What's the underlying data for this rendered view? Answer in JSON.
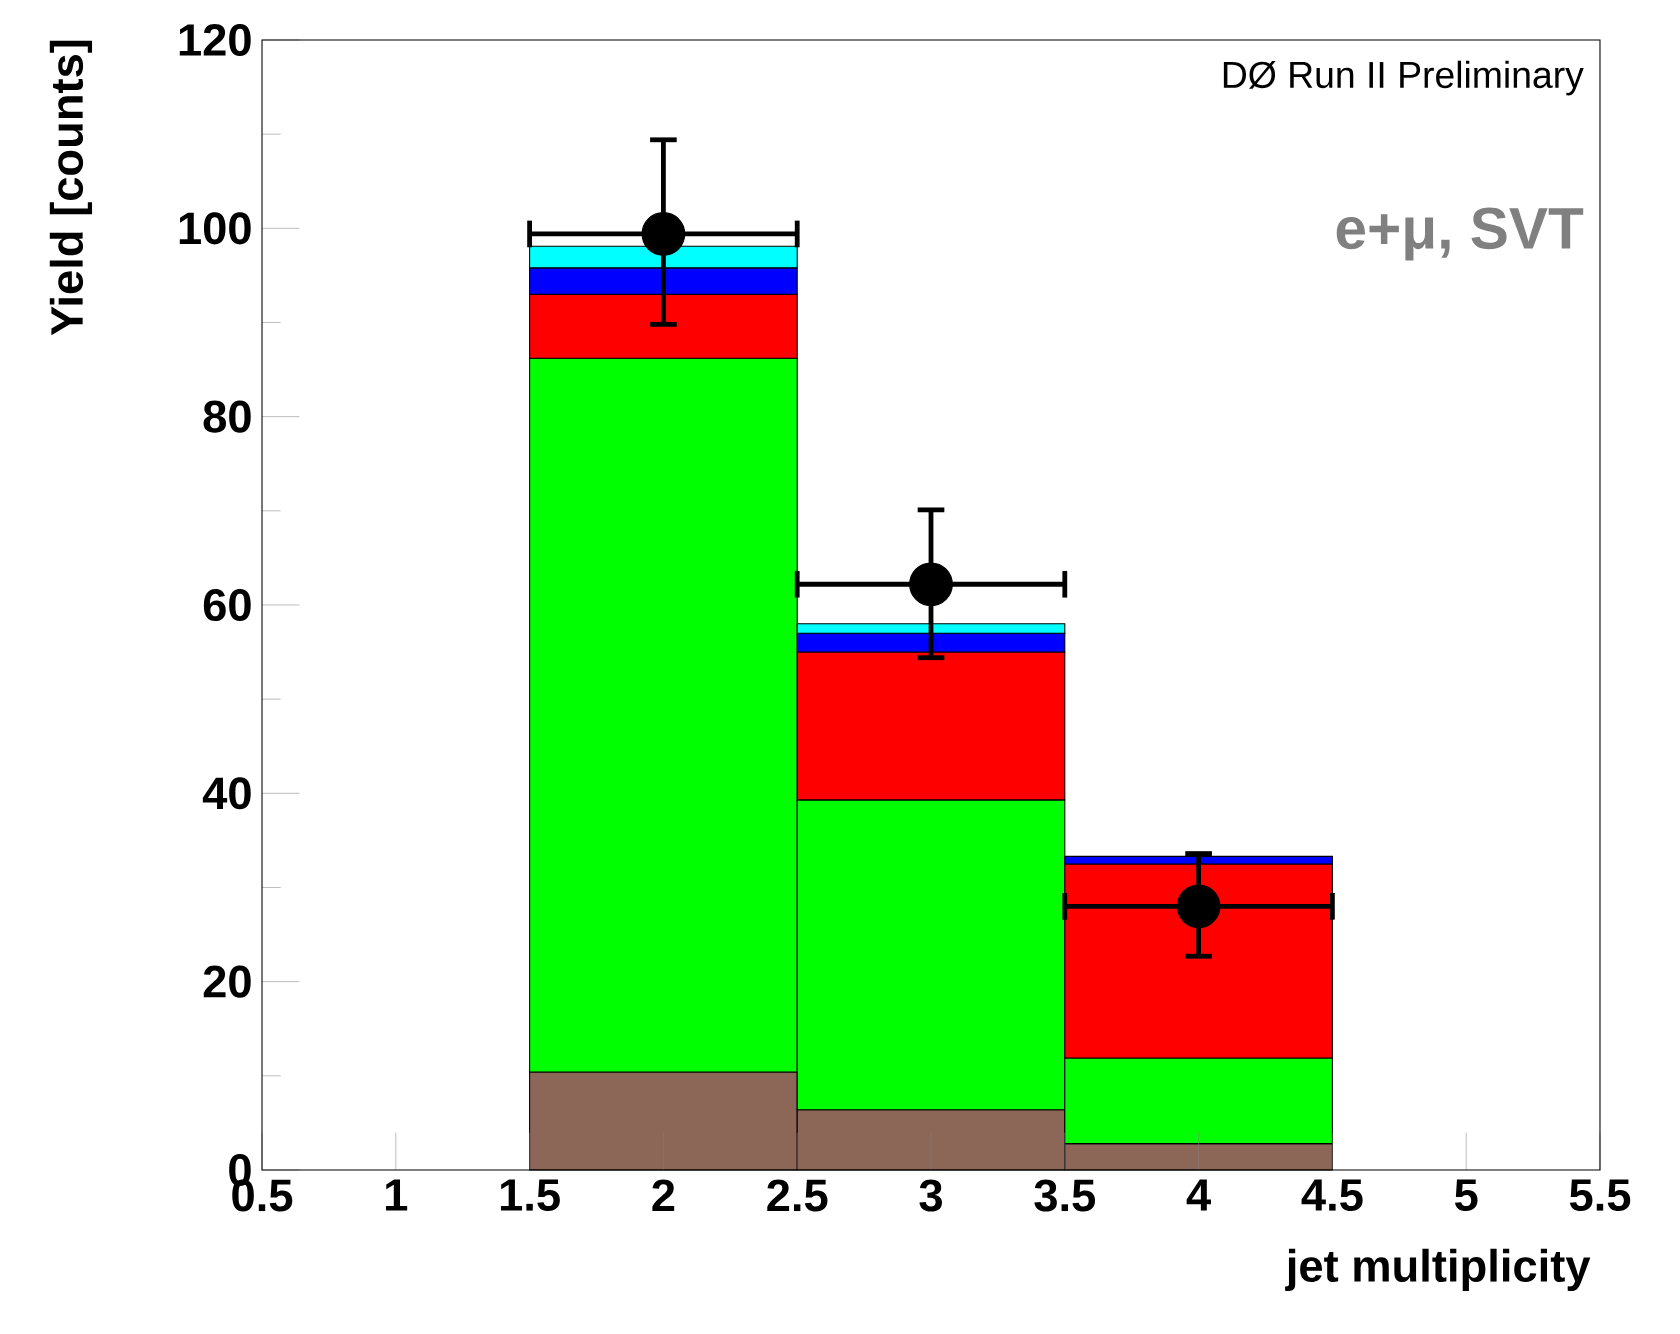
{
  "chart_data": {
    "type": "bar",
    "xlabel": "jet multiplicity",
    "ylabel": "Yield [counts]",
    "annotations": [
      "DØ Run II Preliminary",
      "e+μ, SVT"
    ],
    "x": [
      2,
      3,
      4
    ],
    "stacked": true,
    "marker": "circle",
    "xlim": [
      0.5,
      5.5
    ],
    "xticks": [
      0.5,
      1,
      1.5,
      2,
      2.5,
      3,
      3.5,
      4,
      4.5,
      5,
      5.5
    ],
    "ylim": [
      0,
      120
    ],
    "yticks": [
      0,
      20,
      40,
      60,
      80,
      100,
      120
    ],
    "series": [
      {
        "color": "#8c6656",
        "values": [
          10.4,
          6.4,
          2.8
        ]
      },
      {
        "color": "#00ff00",
        "values": [
          75.8,
          32.9,
          9.1
        ]
      },
      {
        "color": "#ff0000",
        "values": [
          6.8,
          15.7,
          20.6
        ]
      },
      {
        "color": "#0000ff",
        "values": [
          2.8,
          2.0,
          0.8
        ]
      },
      {
        "color": "#00ffff",
        "values": [
          2.3,
          1.0,
          0
        ]
      },
      {
        "type": "scatter",
        "color": "#000000",
        "x": [
          2,
          3,
          4
        ],
        "values": [
          99.4,
          62.2,
          28.0
        ],
        "errors": [
          [
            89.8,
            109.4
          ],
          [
            54.4,
            70.1
          ],
          [
            22.7,
            33.6
          ]
        ],
        "xerrors": [
          0.5,
          0.5,
          0.5
        ]
      }
    ]
  }
}
